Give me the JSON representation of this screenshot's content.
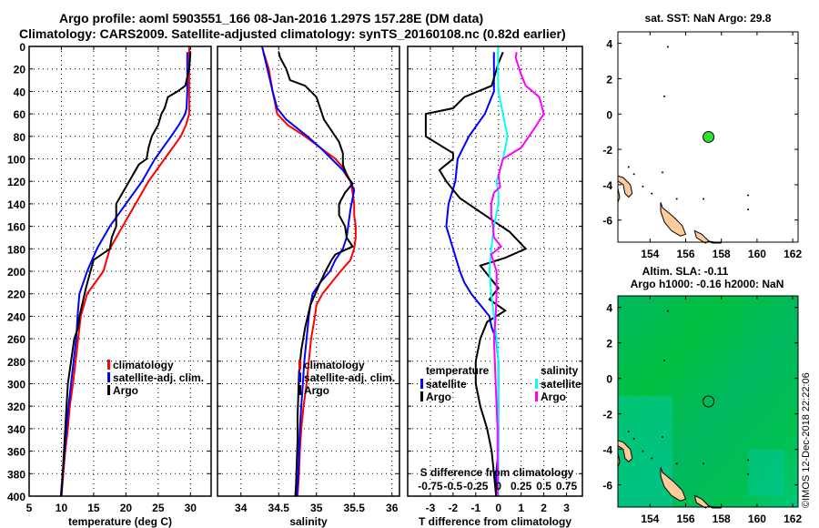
{
  "header": {
    "title_line1": "Argo profile: aoml 5903551_166 08-Jan-2016 1.297S 157.28E (DM data)",
    "title_line2": "Climatology: CARS2009. Satellite-adjusted climatology: synTS_20160108.nc (0.82d earlier)"
  },
  "colors": {
    "climatology": "#ff0000",
    "satellite": "#0000ff",
    "argo": "#000000",
    "sal_satellite": "#00ffff",
    "sal_argo": "#ff00ff",
    "land": "#ffcc99",
    "float_marker": "#33dd33",
    "sla_field": "#00bb55"
  },
  "credit": "©IMOS 12-Dec-2018 22:22:06",
  "chart_data": [
    {
      "type": "line",
      "id": "temperature",
      "title": "",
      "xlabel": "temperature (deg C)",
      "ylabel": "",
      "xlim": [
        5,
        33.2
      ],
      "ylim": [
        400,
        0
      ],
      "xticks": [
        5,
        10,
        15,
        20,
        25,
        30
      ],
      "yticks": [
        0,
        20,
        40,
        60,
        80,
        100,
        120,
        140,
        160,
        180,
        200,
        220,
        240,
        260,
        280,
        300,
        320,
        340,
        360,
        380,
        400
      ],
      "grid": true,
      "legend": {
        "placement": "lower-right",
        "entries": [
          "climatology",
          "satellite-adj. clim.",
          "Argo"
        ]
      },
      "series": [
        {
          "name": "climatology",
          "color_key": "climatology",
          "depth": [
            0,
            20,
            40,
            60,
            70,
            80,
            100,
            120,
            140,
            160,
            180,
            200,
            220,
            230,
            240,
            260,
            280,
            300,
            320,
            340,
            360,
            380,
            400
          ],
          "values": [
            29.8,
            29.8,
            29.8,
            29.8,
            29.3,
            28.5,
            26.0,
            23.5,
            21.5,
            19.5,
            17.5,
            16.5,
            14.0,
            13.5,
            13.0,
            12.6,
            12.2,
            11.8,
            11.3,
            11.0,
            10.6,
            10.3,
            10.0
          ]
        },
        {
          "name": "satellite-adj. clim.",
          "color_key": "satellite",
          "depth": [
            5,
            20,
            40,
            55,
            60,
            70,
            80,
            100,
            120,
            140,
            160,
            180,
            200,
            220,
            240,
            260,
            280,
            300,
            320,
            340,
            360,
            380,
            400
          ],
          "values": [
            29.5,
            29.5,
            29.5,
            29.4,
            29.2,
            28.2,
            27.0,
            24.5,
            22.5,
            20.0,
            17.5,
            15.5,
            14.0,
            12.8,
            12.5,
            12.3,
            11.9,
            11.5,
            11.1,
            10.8,
            10.5,
            10.2,
            9.9
          ]
        },
        {
          "name": "Argo",
          "color_key": "argo",
          "depth": [
            5,
            20,
            35,
            40,
            45,
            55,
            60,
            70,
            80,
            90,
            100,
            105,
            115,
            125,
            140,
            150,
            160,
            170,
            180,
            190,
            200,
            215,
            230,
            240,
            250,
            260,
            280,
            300,
            320,
            340,
            360,
            380,
            400
          ],
          "values": [
            30.0,
            29.8,
            29.2,
            28.0,
            26.5,
            26.0,
            25.5,
            25.0,
            24.0,
            23.5,
            23.2,
            22.0,
            21.0,
            20.0,
            18.5,
            18.5,
            18.5,
            17.8,
            17.5,
            15.0,
            14.5,
            13.8,
            13.2,
            12.8,
            12.6,
            12.0,
            11.5,
            11.0,
            10.8,
            10.6,
            10.4,
            10.2,
            10.0
          ]
        }
      ]
    },
    {
      "type": "line",
      "id": "salinity",
      "title": "",
      "xlabel": "salinity",
      "ylabel": "",
      "xlim": [
        33.69,
        36.1
      ],
      "ylim": [
        400,
        0
      ],
      "xticks": [
        34,
        34.5,
        35,
        35.5,
        36
      ],
      "grid": true,
      "legend": {
        "placement": "lower-right",
        "entries": [
          "climatology",
          "satellite-adj. clim.",
          "Argo"
        ]
      },
      "series": [
        {
          "name": "climatology",
          "color_key": "climatology",
          "depth": [
            5,
            20,
            40,
            60,
            70,
            80,
            90,
            100,
            110,
            120,
            130,
            140,
            150,
            160,
            170,
            180,
            190,
            200,
            210,
            220,
            230,
            240,
            260,
            280,
            300,
            320,
            340,
            360,
            380,
            400
          ],
          "values": [
            34.3,
            34.37,
            34.42,
            34.48,
            34.62,
            34.85,
            35.05,
            35.25,
            35.38,
            35.45,
            35.48,
            35.5,
            35.5,
            35.52,
            35.52,
            35.5,
            35.45,
            35.32,
            35.2,
            35.08,
            35.0,
            34.98,
            34.93,
            34.9,
            34.87,
            34.83,
            34.8,
            34.78,
            34.77,
            34.75
          ]
        },
        {
          "name": "satellite-adj. clim.",
          "color_key": "satellite",
          "depth": [
            0,
            20,
            40,
            55,
            65,
            80,
            90,
            100,
            110,
            120,
            128,
            135,
            145,
            160,
            170,
            180,
            190,
            200,
            210,
            220,
            230,
            240,
            260,
            280,
            300,
            320,
            340,
            360,
            380,
            400
          ],
          "values": [
            34.28,
            34.35,
            34.42,
            34.48,
            34.6,
            34.88,
            35.05,
            35.2,
            35.35,
            35.45,
            35.5,
            35.48,
            35.45,
            35.42,
            35.4,
            35.35,
            35.25,
            35.18,
            35.05,
            34.95,
            34.92,
            34.9,
            34.87,
            34.84,
            34.82,
            34.8,
            34.78,
            34.77,
            34.76,
            34.74
          ]
        },
        {
          "name": "Argo",
          "color_key": "argo",
          "depth": [
            5,
            10,
            20,
            30,
            35,
            45,
            55,
            65,
            75,
            85,
            95,
            105,
            115,
            122,
            130,
            140,
            150,
            160,
            170,
            178,
            185,
            190,
            200,
            210,
            230,
            250,
            270,
            290,
            310,
            330,
            350,
            370,
            390,
            400
          ],
          "values": [
            34.5,
            34.52,
            34.6,
            34.65,
            34.85,
            35.0,
            35.05,
            35.1,
            35.2,
            35.3,
            35.35,
            35.35,
            35.4,
            35.48,
            35.38,
            35.3,
            35.3,
            35.38,
            35.4,
            35.48,
            35.25,
            35.2,
            35.12,
            35.05,
            34.92,
            34.85,
            34.8,
            34.77,
            34.76,
            34.75,
            34.75,
            34.74,
            34.73,
            34.72
          ]
        }
      ]
    },
    {
      "type": "line",
      "id": "differences",
      "title": "",
      "xlabel": "T difference from climatology",
      "x2label": "S difference from climatology",
      "xlim": [
        -4.0,
        3.7
      ],
      "ylim": [
        400,
        0
      ],
      "xticks": [
        -3,
        -2,
        -1,
        0,
        1,
        2,
        3
      ],
      "x2ticks": [
        "-0.75",
        "-0.5",
        "-0.25",
        "0",
        "0.25",
        "0.5",
        "0.75"
      ],
      "grid": true,
      "legend": {
        "placement": "lower",
        "groups": [
          {
            "title": "temperature",
            "entries": [
              "satellite",
              "Argo"
            ]
          },
          {
            "title": "salinity",
            "entries": [
              "satellite",
              "Argo"
            ]
          }
        ]
      },
      "series": [
        {
          "name": "temperature satellite",
          "color_key": "satellite",
          "depth": [
            5,
            20,
            40,
            60,
            80,
            100,
            120,
            140,
            160,
            180,
            200,
            210,
            220,
            230,
            240,
            250,
            260,
            280,
            300,
            320,
            340,
            360,
            380,
            400
          ],
          "values": [
            -0.2,
            -0.2,
            -0.2,
            -0.6,
            -1.3,
            -1.8,
            -1.9,
            -2.2,
            -2.3,
            -2.0,
            -1.7,
            -1.5,
            -1.2,
            -0.8,
            -0.4,
            -0.3,
            -0.1,
            0.0,
            0.0,
            0.0,
            0.0,
            0.0,
            -0.1,
            -0.1
          ]
        },
        {
          "name": "temperature Argo",
          "color_key": "argo",
          "depth": [
            5,
            15,
            35,
            45,
            55,
            60,
            80,
            95,
            100,
            110,
            120,
            135,
            150,
            165,
            180,
            188,
            195,
            205,
            215,
            225,
            235,
            245,
            260,
            280,
            300,
            320,
            340,
            360,
            380,
            400
          ],
          "values": [
            0.2,
            0.0,
            -0.3,
            -1.5,
            -2.0,
            -3.2,
            -3.2,
            -2.0,
            -2.0,
            -2.6,
            -2.3,
            -1.7,
            -0.6,
            0.5,
            1.2,
            0.3,
            -0.8,
            -0.4,
            0.0,
            -0.4,
            0.3,
            -0.5,
            -0.8,
            -1.0,
            -1.0,
            -0.8,
            -0.5,
            -0.3,
            -0.2,
            -0.1
          ]
        },
        {
          "name": "salinity satellite",
          "color_key": "sal_satellite",
          "depth": [
            0,
            20,
            40,
            60,
            80,
            100,
            120,
            130,
            140,
            160,
            180,
            200,
            220,
            240,
            260,
            280,
            300,
            320,
            340,
            360,
            380,
            400
          ],
          "values": [
            -0.005,
            -0.005,
            0.0,
            0.05,
            0.1,
            0.05,
            -0.02,
            0.0,
            0.0,
            -0.05,
            -0.08,
            -0.1,
            -0.08,
            -0.05,
            -0.02,
            0.0,
            0.0,
            0.0,
            0.0,
            0.0,
            0.0,
            0.0
          ]
        },
        {
          "name": "salinity Argo",
          "color_key": "sal_argo",
          "depth": [
            5,
            10,
            25,
            35,
            45,
            60,
            75,
            90,
            100,
            115,
            125,
            130,
            140,
            150,
            160,
            170,
            178,
            185,
            200,
            220,
            240,
            260,
            280,
            300,
            320,
            340,
            360,
            380,
            400
          ],
          "values": [
            0.2,
            0.19,
            0.25,
            0.3,
            0.45,
            0.5,
            0.38,
            0.25,
            0.05,
            0.0,
            0.02,
            -0.05,
            -0.08,
            -0.08,
            -0.06,
            -0.05,
            0.03,
            -0.08,
            -0.02,
            -0.02,
            -0.03,
            -0.05,
            -0.04,
            -0.03,
            -0.02,
            -0.01,
            -0.01,
            -0.005,
            -0.01
          ]
        }
      ]
    },
    {
      "type": "scatter",
      "id": "map-sst",
      "title": "sat. SST: NaN Argo: 29.8",
      "xlim": [
        152.2,
        162.3
      ],
      "ylim": [
        -7.25,
        4.65
      ],
      "xticks": [
        154,
        156,
        158,
        160,
        162
      ],
      "yticks": [
        4,
        2,
        0,
        -2,
        -4,
        -6
      ],
      "points": [
        {
          "lon": 157.28,
          "lat": -1.297,
          "label": "Argo float"
        }
      ]
    },
    {
      "type": "heatmap",
      "id": "map-sla",
      "title": "Altim. SLA: -0.11",
      "subtitle": "Argo h1000: -0.16 h2000: NaN",
      "xlim": [
        152.2,
        162.3
      ],
      "ylim": [
        -7.25,
        4.65
      ],
      "xticks": [
        154,
        156,
        158,
        160,
        162
      ],
      "yticks": [
        4,
        2,
        0,
        -2,
        -4,
        -6
      ],
      "points": [
        {
          "lon": 157.28,
          "lat": -1.297,
          "label": "Argo float"
        }
      ]
    }
  ]
}
